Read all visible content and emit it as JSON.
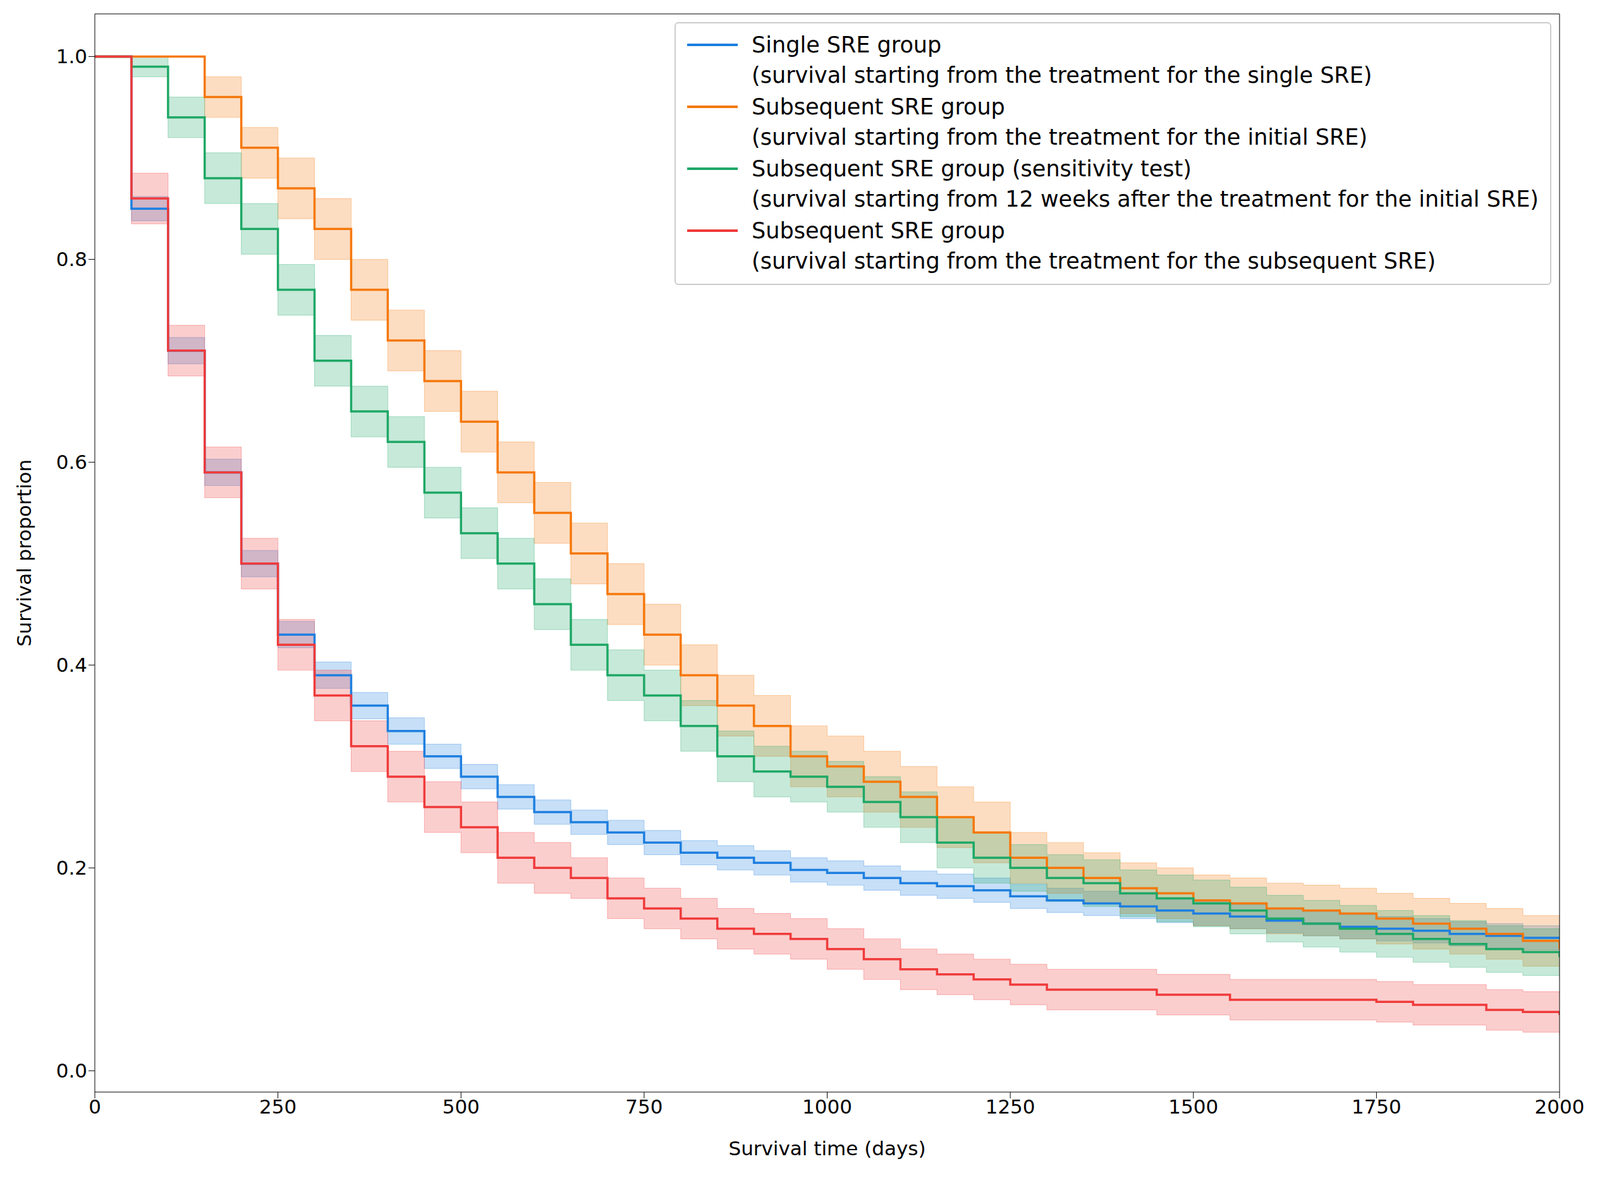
{
  "chart_data": {
    "type": "line",
    "x_label": "Survival time (days)",
    "y_label": "Survival proportion",
    "legend": "upper right",
    "grid": false,
    "line_style": "step",
    "xlim": [
      0,
      2000
    ],
    "xticks": [
      0,
      250,
      500,
      750,
      1000,
      1250,
      1500,
      1750,
      2000
    ],
    "ylim": [
      -0.021,
      1.042
    ],
    "yticks": [
      {
        "value": 0,
        "label": "0.0"
      },
      0.2,
      0.4,
      0.6,
      0.8,
      {
        "value": 1,
        "label": "1.0"
      }
    ],
    "x": [
      0,
      50,
      100,
      150,
      200,
      250,
      300,
      350,
      400,
      450,
      500,
      550,
      600,
      650,
      700,
      750,
      800,
      850,
      900,
      950,
      1000,
      1050,
      1100,
      1150,
      1200,
      1250,
      1300,
      1350,
      1400,
      1450,
      1500,
      1550,
      1600,
      1650,
      1700,
      1750,
      1800,
      1850,
      1900,
      1950,
      2000
    ],
    "series": [
      {
        "name": "Single SRE group\n(survival starting from the treatment for the single SRE)",
        "color": "#1e7fe0",
        "values": [
          1.0,
          0.85,
          0.71,
          0.59,
          0.5,
          0.43,
          0.39,
          0.36,
          0.335,
          0.31,
          0.29,
          0.27,
          0.255,
          0.245,
          0.235,
          0.225,
          0.215,
          0.21,
          0.205,
          0.198,
          0.195,
          0.19,
          0.185,
          0.182,
          0.178,
          0.172,
          0.168,
          0.165,
          0.162,
          0.158,
          0.155,
          0.152,
          0.148,
          0.145,
          0.142,
          0.14,
          0.138,
          0.135,
          0.133,
          0.131,
          0.13
        ],
        "lower": [
          1.0,
          0.838,
          0.697,
          0.577,
          0.487,
          0.417,
          0.377,
          0.347,
          0.322,
          0.298,
          0.278,
          0.258,
          0.243,
          0.233,
          0.223,
          0.213,
          0.203,
          0.198,
          0.193,
          0.186,
          0.183,
          0.178,
          0.173,
          0.17,
          0.166,
          0.16,
          0.156,
          0.153,
          0.15,
          0.146,
          0.143,
          0.14,
          0.136,
          0.133,
          0.13,
          0.128,
          0.126,
          0.123,
          0.121,
          0.119,
          0.118
        ],
        "upper": [
          1.0,
          0.862,
          0.723,
          0.603,
          0.513,
          0.443,
          0.403,
          0.373,
          0.348,
          0.322,
          0.302,
          0.282,
          0.267,
          0.257,
          0.247,
          0.237,
          0.227,
          0.222,
          0.217,
          0.21,
          0.207,
          0.202,
          0.197,
          0.194,
          0.19,
          0.184,
          0.18,
          0.177,
          0.174,
          0.17,
          0.167,
          0.164,
          0.16,
          0.157,
          0.154,
          0.152,
          0.15,
          0.147,
          0.145,
          0.143,
          0.142
        ]
      },
      {
        "name": "Subsequent SRE group\n(survival starting from the treatment for the initial SRE)",
        "color": "#f5780a",
        "values": [
          1,
          1,
          1,
          0.96,
          0.91,
          0.87,
          0.83,
          0.77,
          0.72,
          0.68,
          0.64,
          0.59,
          0.55,
          0.51,
          0.47,
          0.43,
          0.39,
          0.36,
          0.34,
          0.31,
          0.3,
          0.285,
          0.27,
          0.25,
          0.235,
          0.21,
          0.2,
          0.19,
          0.18,
          0.175,
          0.168,
          0.165,
          0.16,
          0.158,
          0.155,
          0.15,
          0.145,
          0.14,
          0.135,
          0.128,
          0.12
        ],
        "lower": [
          1,
          1,
          1,
          0.94,
          0.88,
          0.84,
          0.8,
          0.74,
          0.69,
          0.65,
          0.61,
          0.56,
          0.52,
          0.48,
          0.44,
          0.4,
          0.36,
          0.33,
          0.31,
          0.28,
          0.27,
          0.255,
          0.24,
          0.22,
          0.205,
          0.185,
          0.175,
          0.165,
          0.155,
          0.15,
          0.143,
          0.14,
          0.135,
          0.133,
          0.13,
          0.125,
          0.12,
          0.115,
          0.11,
          0.103,
          0.095
        ],
        "upper": [
          1,
          1,
          1,
          0.98,
          0.93,
          0.9,
          0.86,
          0.8,
          0.75,
          0.71,
          0.67,
          0.62,
          0.58,
          0.54,
          0.5,
          0.46,
          0.42,
          0.39,
          0.37,
          0.34,
          0.33,
          0.315,
          0.3,
          0.28,
          0.265,
          0.235,
          0.225,
          0.215,
          0.205,
          0.2,
          0.193,
          0.19,
          0.185,
          0.183,
          0.18,
          0.175,
          0.17,
          0.165,
          0.16,
          0.153,
          0.145
        ]
      },
      {
        "name": "Subsequent SRE group (sensitivity test)\n(survival starting from 12 weeks after the treatment for the initial SRE)",
        "color": "#1ea866",
        "values": [
          1,
          0.99,
          0.94,
          0.88,
          0.83,
          0.77,
          0.7,
          0.65,
          0.62,
          0.57,
          0.53,
          0.5,
          0.46,
          0.42,
          0.39,
          0.37,
          0.34,
          0.31,
          0.295,
          0.29,
          0.28,
          0.265,
          0.25,
          0.225,
          0.21,
          0.2,
          0.19,
          0.185,
          0.175,
          0.17,
          0.165,
          0.158,
          0.15,
          0.145,
          0.14,
          0.135,
          0.13,
          0.125,
          0.12,
          0.117,
          0.112
        ],
        "lower": [
          1,
          0.98,
          0.92,
          0.855,
          0.805,
          0.745,
          0.675,
          0.625,
          0.595,
          0.545,
          0.505,
          0.475,
          0.435,
          0.395,
          0.365,
          0.345,
          0.315,
          0.285,
          0.27,
          0.265,
          0.255,
          0.24,
          0.225,
          0.2,
          0.185,
          0.177,
          0.167,
          0.162,
          0.152,
          0.147,
          0.142,
          0.135,
          0.127,
          0.122,
          0.117,
          0.112,
          0.107,
          0.102,
          0.097,
          0.094,
          0.09
        ],
        "upper": [
          1,
          1,
          0.96,
          0.905,
          0.855,
          0.795,
          0.725,
          0.675,
          0.645,
          0.595,
          0.555,
          0.525,
          0.485,
          0.445,
          0.415,
          0.395,
          0.365,
          0.335,
          0.32,
          0.315,
          0.305,
          0.29,
          0.275,
          0.25,
          0.235,
          0.223,
          0.213,
          0.208,
          0.198,
          0.193,
          0.188,
          0.181,
          0.173,
          0.168,
          0.163,
          0.158,
          0.153,
          0.148,
          0.143,
          0.14,
          0.135
        ]
      },
      {
        "name": "Subsequent SRE group\n(survival starting from the treatment for the subsequent SRE)",
        "color": "#f03a3a",
        "values": [
          1,
          0.86,
          0.71,
          0.59,
          0.5,
          0.42,
          0.37,
          0.32,
          0.29,
          0.26,
          0.24,
          0.21,
          0.2,
          0.19,
          0.17,
          0.16,
          0.15,
          0.14,
          0.135,
          0.13,
          0.12,
          0.11,
          0.1,
          0.095,
          0.09,
          0.085,
          0.08,
          0.08,
          0.08,
          0.075,
          0.075,
          0.07,
          0.07,
          0.07,
          0.07,
          0.068,
          0.065,
          0.065,
          0.06,
          0.058,
          0.055
        ],
        "lower": [
          1,
          0.835,
          0.685,
          0.565,
          0.475,
          0.395,
          0.345,
          0.295,
          0.265,
          0.235,
          0.215,
          0.185,
          0.175,
          0.17,
          0.15,
          0.14,
          0.13,
          0.12,
          0.115,
          0.11,
          0.1,
          0.09,
          0.08,
          0.075,
          0.07,
          0.065,
          0.06,
          0.06,
          0.06,
          0.055,
          0.055,
          0.05,
          0.05,
          0.05,
          0.05,
          0.048,
          0.045,
          0.045,
          0.04,
          0.038,
          0.035
        ],
        "upper": [
          1,
          0.885,
          0.735,
          0.615,
          0.525,
          0.445,
          0.395,
          0.345,
          0.315,
          0.285,
          0.265,
          0.235,
          0.225,
          0.21,
          0.19,
          0.18,
          0.17,
          0.16,
          0.155,
          0.15,
          0.14,
          0.13,
          0.12,
          0.115,
          0.11,
          0.105,
          0.1,
          0.1,
          0.1,
          0.095,
          0.095,
          0.09,
          0.09,
          0.09,
          0.09,
          0.088,
          0.085,
          0.085,
          0.08,
          0.078,
          0.075
        ]
      }
    ]
  }
}
